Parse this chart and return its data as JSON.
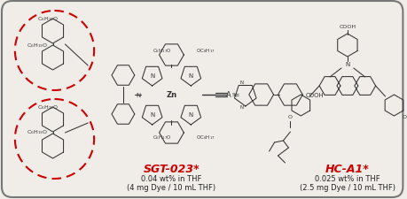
{
  "background_color": "#f0ede8",
  "border_color": "#777777",
  "sgt_label": "SGT-023*",
  "sgt_label_color": "#cc0000",
  "sgt_sub1": "0.04 wt% in THF",
  "sgt_sub2": "(4 mg Dye / 10 mL THF)",
  "hca1_label": "HC-A1*",
  "hca1_label_color": "#cc0000",
  "hca1_sub1": "0.025 wt% in THF",
  "hca1_sub2": "(2.5 mg Dye / 10 mL THF)",
  "circle_color": "#cc0000",
  "mol_color": "#333333",
  "fig_width": 4.6,
  "fig_height": 2.26,
  "dpi": 100
}
